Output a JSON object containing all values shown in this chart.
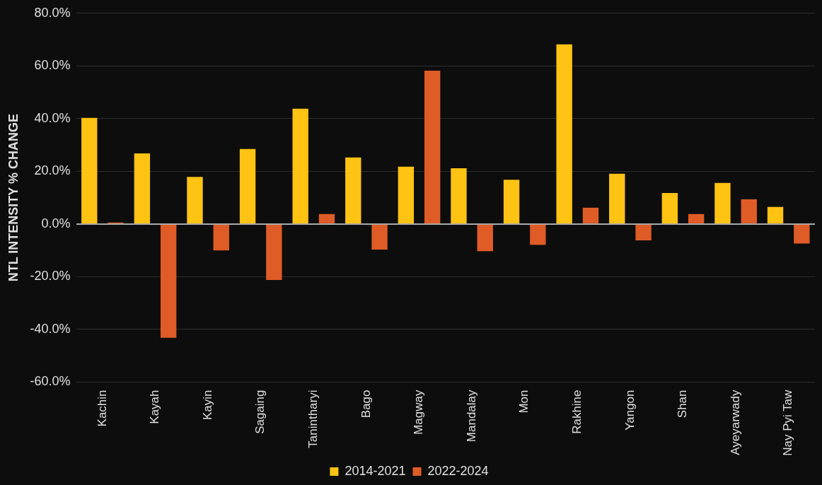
{
  "chart_data": {
    "type": "bar",
    "ylabel": "NTL INTENSITY % CHANGE",
    "categories": [
      "Kachin",
      "Kayah",
      "Kayin",
      "Sagaing",
      "Tanintharyi",
      "Bago",
      "Magway",
      "Mandalay",
      "Mon",
      "Rakhine",
      "Yangon",
      "Shan",
      "Ayeyarwady",
      "Nay Pyi Taw"
    ],
    "series": [
      {
        "name": "2014-2021",
        "color": "#fec313",
        "values": [
          40.3,
          26.8,
          17.9,
          28.5,
          43.8,
          25.3,
          21.8,
          21.2,
          16.8,
          68.2,
          19.1,
          11.8,
          15.6,
          6.5
        ]
      },
      {
        "name": "2022-2024",
        "color": "#e05c27",
        "values": [
          0.6,
          -43.2,
          -10,
          -21.2,
          3.8,
          -9.7,
          58.2,
          -10.3,
          -7.9,
          6.2,
          -6.2,
          3.8,
          9.4,
          -7.4
        ]
      }
    ],
    "ylim": [
      -60,
      80
    ],
    "yticks": [
      {
        "value": -60,
        "label": "-60.0%"
      },
      {
        "value": -40,
        "label": "-40.0%"
      },
      {
        "value": -20,
        "label": "-20.0%"
      },
      {
        "value": 0,
        "label": "0.0%"
      },
      {
        "value": 20,
        "label": "20.0%"
      },
      {
        "value": 40,
        "label": "40.0%"
      },
      {
        "value": 60,
        "label": "60.0%"
      },
      {
        "value": 80,
        "label": "80.0%"
      }
    ],
    "grid": "y",
    "legend": "bottom"
  }
}
